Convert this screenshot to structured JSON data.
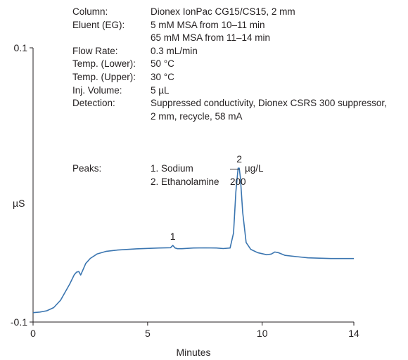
{
  "conditions": [
    {
      "label": "Column:",
      "values": [
        "Dionex IonPac CG15/CS15, 2 mm"
      ]
    },
    {
      "label": "Eluent (EG):",
      "values": [
        "5 mM MSA from 10–11 min",
        "65 mM MSA from 11–14 min"
      ]
    },
    {
      "label": "Flow Rate:",
      "values": [
        "0.3 mL/min"
      ]
    },
    {
      "label": "Temp. (Lower):",
      "values": [
        "50 °C"
      ]
    },
    {
      "label": "Temp. (Upper):",
      "values": [
        "30 °C"
      ]
    },
    {
      "label": "Inj. Volume:",
      "values": [
        "5 µL"
      ]
    },
    {
      "label": "Detection:",
      "values": [
        "Suppressed conductivity, Dionex CSRS 300 suppressor,",
        "2 mm, recycle, 58 mA"
      ]
    }
  ],
  "peaks_table": {
    "label": "Peaks:",
    "unit_prefix": "—",
    "unit": "µg/L",
    "rows": [
      {
        "name": "1. Sodium",
        "amount": ""
      },
      {
        "name": "2. Ethanolamine",
        "amount": "200"
      }
    ]
  },
  "colors": {
    "trace": "#3a75b0",
    "axis": "#231f20",
    "text": "#231f20"
  },
  "chart_data": {
    "type": "line",
    "xlabel": "Minutes",
    "ylabel": "µS",
    "xlim": [
      0,
      14
    ],
    "ylim": [
      -0.1,
      0.1
    ],
    "xticks": [
      0,
      5,
      10,
      14
    ],
    "yticks": [
      -0.1,
      0.1
    ],
    "grid": false,
    "series": [
      {
        "x": [
          0,
          0.3,
          0.6,
          0.9,
          1.2,
          1.4,
          1.6,
          1.8,
          1.9,
          2.0,
          2.08,
          2.15,
          2.3,
          2.5,
          2.8,
          3.2,
          3.7,
          4.5,
          5.5,
          6.0,
          6.1,
          6.2,
          6.3,
          6.5,
          7.0,
          7.5,
          8.0,
          8.3,
          8.6,
          8.75,
          8.85,
          8.95,
          9.0,
          9.05,
          9.15,
          9.3,
          9.5,
          9.8,
          10.2,
          10.4,
          10.55,
          10.7,
          11.0,
          11.5,
          12.0,
          13.0,
          14.0
        ],
        "y": [
          -0.0932,
          -0.0927,
          -0.0918,
          -0.0895,
          -0.0841,
          -0.0782,
          -0.0723,
          -0.0655,
          -0.0636,
          -0.0632,
          -0.0657,
          -0.063,
          -0.0573,
          -0.0536,
          -0.0503,
          -0.0484,
          -0.0475,
          -0.0466,
          -0.046,
          -0.0458,
          -0.0441,
          -0.046,
          -0.0465,
          -0.0465,
          -0.046,
          -0.0459,
          -0.046,
          -0.0464,
          -0.046,
          -0.035,
          -0.005,
          0.0122,
          0.0122,
          0.005,
          -0.02,
          -0.042,
          -0.047,
          -0.0494,
          -0.0509,
          -0.0504,
          -0.0489,
          -0.0494,
          -0.0514,
          -0.0523,
          -0.0532,
          -0.0537,
          -0.0537
        ]
      }
    ],
    "annotations": [
      {
        "text": "1",
        "x": 6.1,
        "y": -0.0441
      },
      {
        "text": "2",
        "x": 9.0,
        "y": 0.0122
      }
    ]
  }
}
